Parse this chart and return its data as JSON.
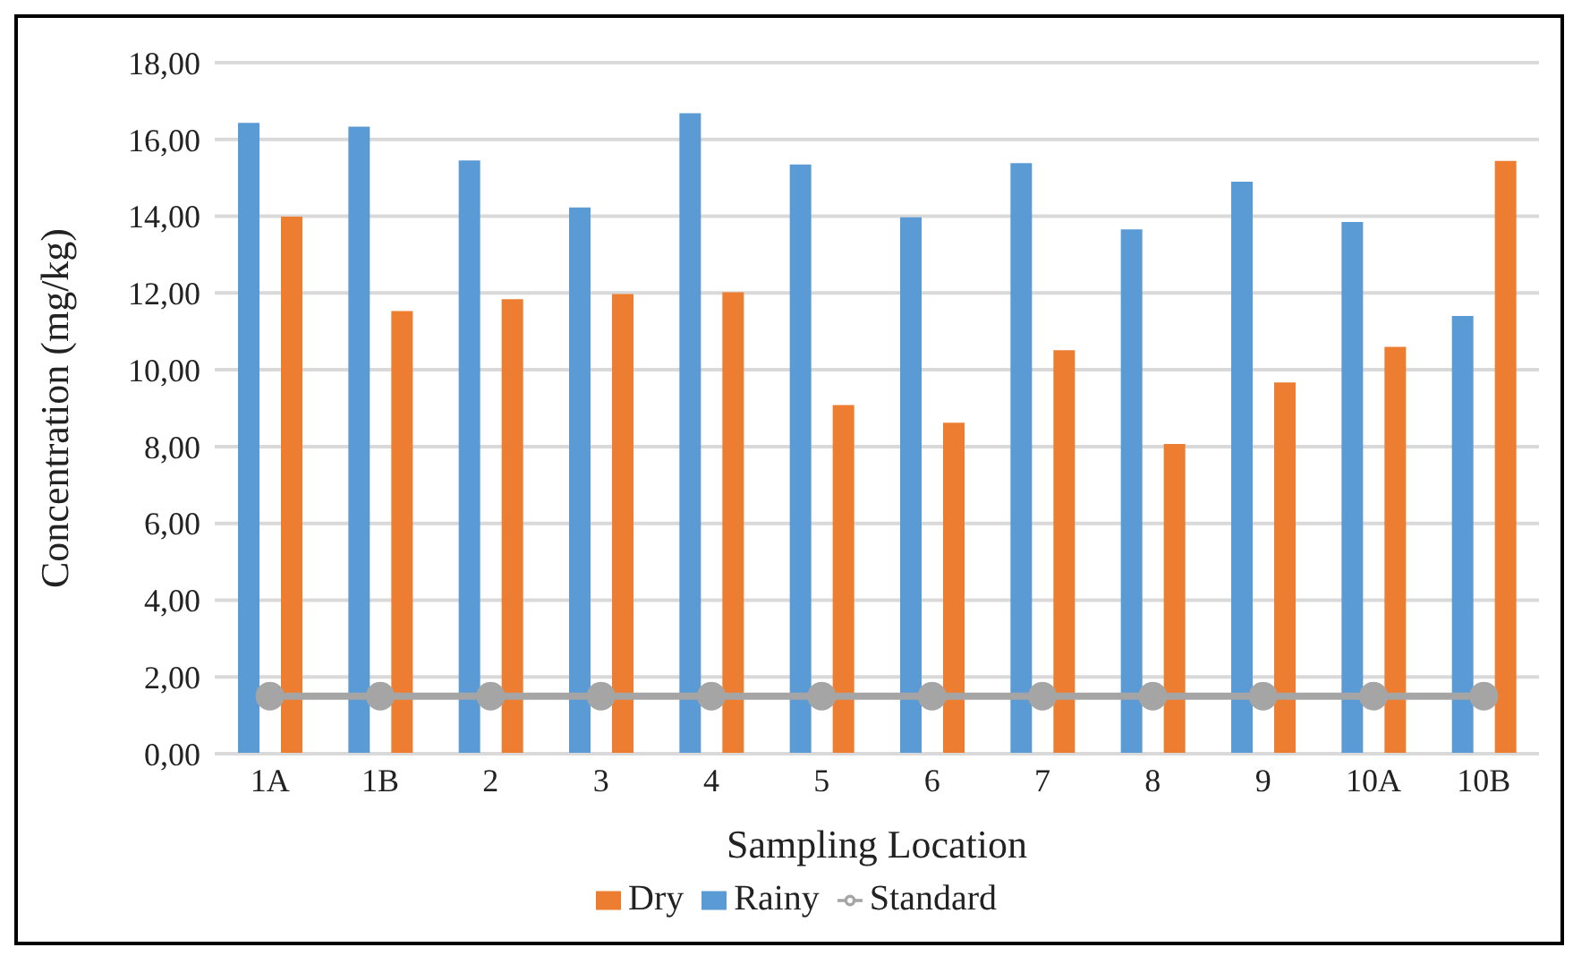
{
  "chart_data": {
    "type": "bar",
    "xlabel": "Sampling Location",
    "ylabel": "Concentration (mg/kg)",
    "categories": [
      "1A",
      "1B",
      "2",
      "3",
      "4",
      "5",
      "6",
      "7",
      "8",
      "9",
      "10A",
      "10B"
    ],
    "series": [
      {
        "name": "Rainy",
        "color": "#5b9bd5",
        "values": [
          16.43,
          16.33,
          15.45,
          14.23,
          16.68,
          15.35,
          13.97,
          15.38,
          13.66,
          14.9,
          13.85,
          11.4
        ]
      },
      {
        "name": "Dry",
        "color": "#ed7d31",
        "values": [
          13.99,
          11.53,
          11.84,
          11.97,
          12.02,
          9.08,
          8.62,
          10.51,
          8.07,
          9.67,
          10.6,
          15.44
        ]
      },
      {
        "name": "Standard",
        "type": "line",
        "color": "#a5a5a5",
        "marker": "circle",
        "values": [
          1.5,
          1.5,
          1.5,
          1.5,
          1.5,
          1.5,
          1.5,
          1.5,
          1.5,
          1.5,
          1.5,
          1.5
        ]
      }
    ],
    "ylim": [
      0,
      18
    ],
    "yticks": [
      {
        "value": 0,
        "label": "0,00"
      },
      {
        "value": 2,
        "label": "2,00"
      },
      {
        "value": 4,
        "label": "4,00"
      },
      {
        "value": 6,
        "label": "6,00"
      },
      {
        "value": 8,
        "label": "8,00"
      },
      {
        "value": 10,
        "label": "10,00"
      },
      {
        "value": 12,
        "label": "12,00"
      },
      {
        "value": 14,
        "label": "14,00"
      },
      {
        "value": 16,
        "label": "16,00"
      },
      {
        "value": 18,
        "label": "18,00"
      }
    ],
    "grid": "y",
    "legend": "bottom"
  }
}
